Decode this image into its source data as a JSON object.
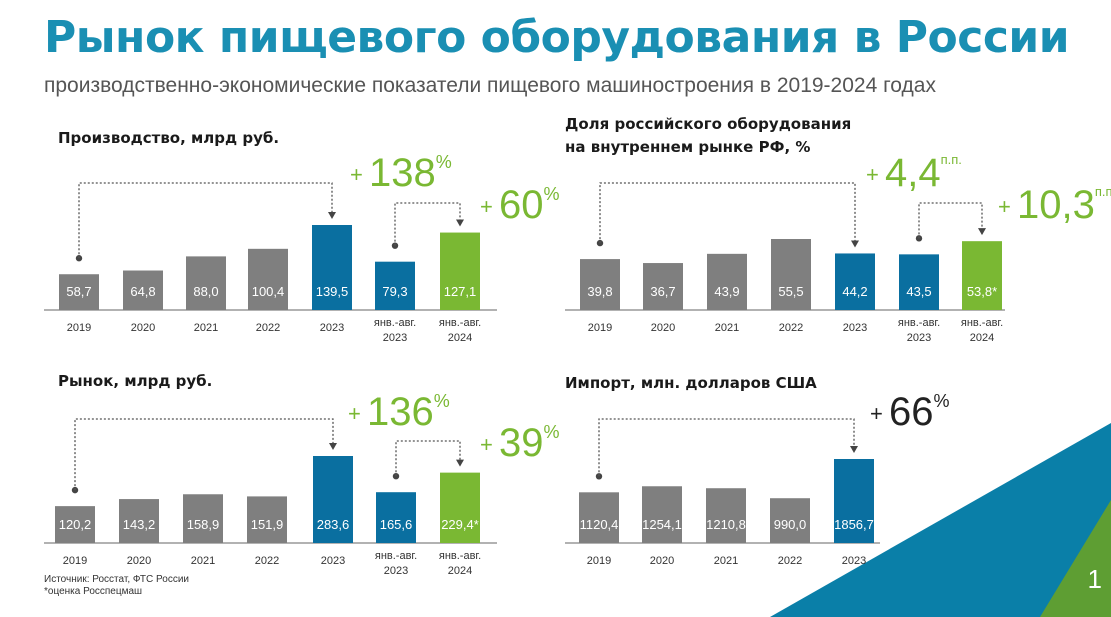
{
  "title": "Рынок пищевого оборудования в России",
  "subtitle": "производственно-экономические показатели пищевого машиностроения в 2019-2024 годах",
  "page_number": "1",
  "source": {
    "line1": "Источник: Росстат, ФТС России",
    "line2": "*оценка Росспецмаш"
  },
  "colors": {
    "grey": "#7f7f7f",
    "blue": "#0a6fa0",
    "green": "#7ab833",
    "title": "#1a8fb3"
  },
  "chart_data": [
    {
      "type": "bar",
      "title": "Производство, млрд руб.",
      "categories": [
        "2019",
        "2020",
        "2021",
        "2022",
        "2023",
        "янв.-авг. 2023",
        "янв.-авг. 2024"
      ],
      "values": [
        58.7,
        64.8,
        88.0,
        100.4,
        139.5,
        79.3,
        127.1
      ],
      "value_labels": [
        "58,7",
        "64,8",
        "88,0",
        "100,4",
        "139,5",
        "79,3",
        "127,1"
      ],
      "bar_colors": [
        "grey",
        "grey",
        "grey",
        "grey",
        "blue",
        "blue",
        "green"
      ],
      "annotations": [
        {
          "from": 0,
          "to": 4,
          "text": "138",
          "unit": "%",
          "color": "grey-green"
        },
        {
          "from": 5,
          "to": 6,
          "text": "60",
          "unit": "%",
          "color": "green"
        }
      ]
    },
    {
      "type": "bar",
      "title": "Доля российского оборудования на внутреннем рынке РФ, %",
      "title_lines": [
        "Доля российского оборудования",
        "на внутреннем рынке РФ, %"
      ],
      "categories": [
        "2019",
        "2020",
        "2021",
        "2022",
        "2023",
        "янв.-авг. 2023",
        "янв.-авг. 2024"
      ],
      "values": [
        39.8,
        36.7,
        43.9,
        55.5,
        44.2,
        43.5,
        53.8
      ],
      "value_labels": [
        "39,8",
        "36,7",
        "43,9",
        "55,5",
        "44,2",
        "43,5",
        "53,8*"
      ],
      "bar_colors": [
        "grey",
        "grey",
        "grey",
        "grey",
        "blue",
        "blue",
        "green"
      ],
      "annotations": [
        {
          "from": 0,
          "to": 4,
          "text": "4,4",
          "unit": "п.п.",
          "color": "green"
        },
        {
          "from": 5,
          "to": 6,
          "text": "10,3",
          "unit": "п.п.",
          "color": "green"
        }
      ]
    },
    {
      "type": "bar",
      "title": "Рынок, млрд руб.",
      "categories": [
        "2019",
        "2020",
        "2021",
        "2022",
        "2023",
        "янв.-авг. 2023",
        "янв.-авг. 2024"
      ],
      "values": [
        120.2,
        143.2,
        158.9,
        151.9,
        283.6,
        165.6,
        229.4
      ],
      "value_labels": [
        "120,2",
        "143,2",
        "158,9",
        "151,9",
        "283,6",
        "165,6",
        "229,4*"
      ],
      "bar_colors": [
        "grey",
        "grey",
        "grey",
        "grey",
        "blue",
        "blue",
        "green"
      ],
      "annotations": [
        {
          "from": 0,
          "to": 4,
          "text": "136",
          "unit": "%",
          "color": "green"
        },
        {
          "from": 5,
          "to": 6,
          "text": "39",
          "unit": "%",
          "color": "green"
        }
      ]
    },
    {
      "type": "bar",
      "title": "Импорт, млн. долларов США",
      "categories": [
        "2019",
        "2020",
        "2021",
        "2022",
        "2023"
      ],
      "values": [
        1120.4,
        1254.1,
        1210.8,
        990.0,
        1856.7
      ],
      "value_labels": [
        "1120,4",
        "1254,1",
        "1210,8",
        "990,0",
        "1856,7"
      ],
      "bar_colors": [
        "grey",
        "grey",
        "grey",
        "grey",
        "blue"
      ],
      "annotations": [
        {
          "from": 0,
          "to": 4,
          "text": "66",
          "unit": "%",
          "color": "dark"
        }
      ]
    }
  ]
}
